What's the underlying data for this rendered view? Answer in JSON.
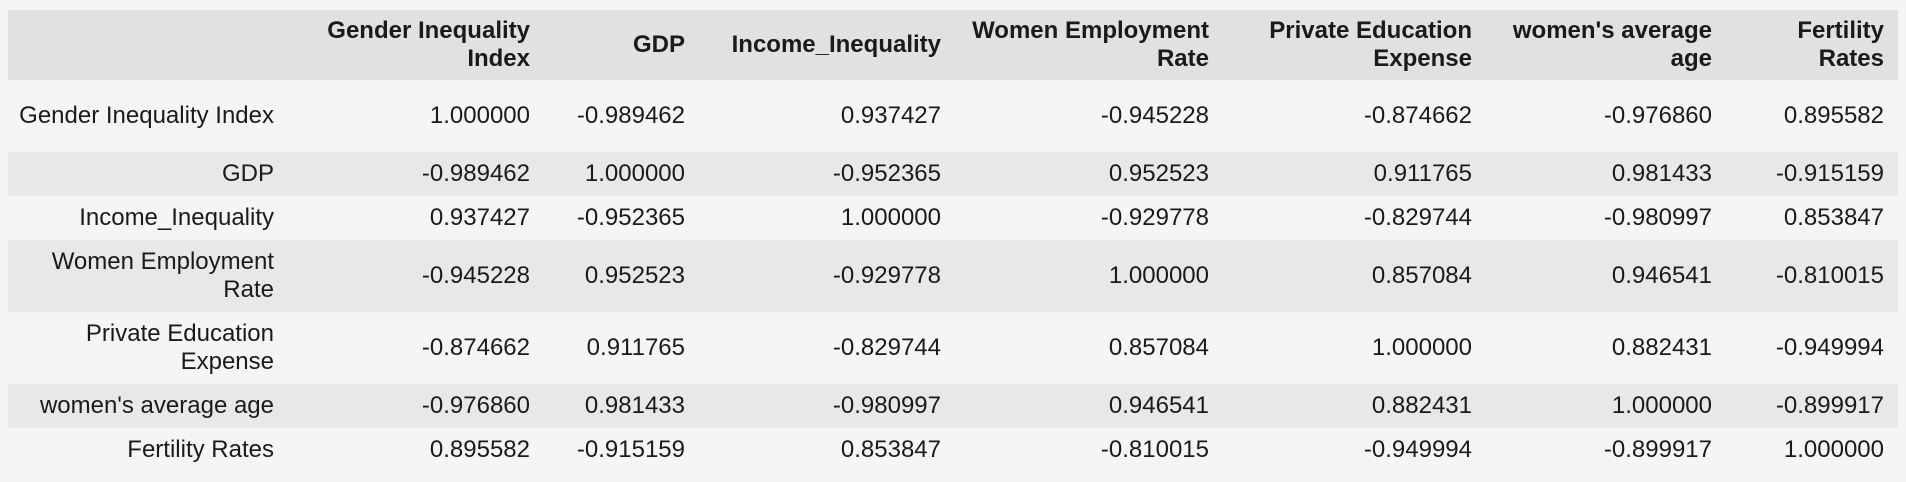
{
  "table": {
    "index_header": "",
    "columns": [
      "Gender Inequality Index",
      "GDP",
      "Income_Inequality",
      "Women Employment Rate",
      "Private Education Expense",
      "women's average age",
      "Fertility Rates"
    ],
    "rows": [
      {
        "label": "Gender Inequality Index",
        "values": [
          "1.000000",
          "-0.989462",
          "0.937427",
          "-0.945228",
          "-0.874662",
          "-0.976860",
          "0.895582"
        ]
      },
      {
        "label": "GDP",
        "values": [
          "-0.989462",
          "1.000000",
          "-0.952365",
          "0.952523",
          "0.911765",
          "0.981433",
          "-0.915159"
        ]
      },
      {
        "label": "Income_Inequality",
        "values": [
          "0.937427",
          "-0.952365",
          "1.000000",
          "-0.929778",
          "-0.829744",
          "-0.980997",
          "0.853847"
        ]
      },
      {
        "label": "Women Employment Rate",
        "values": [
          "-0.945228",
          "0.952523",
          "-0.929778",
          "1.000000",
          "0.857084",
          "0.946541",
          "-0.810015"
        ]
      },
      {
        "label": "Private Education Expense",
        "values": [
          "-0.874662",
          "0.911765",
          "-0.829744",
          "0.857084",
          "1.000000",
          "0.882431",
          "-0.949994"
        ]
      },
      {
        "label": "women's average age",
        "values": [
          "-0.976860",
          "0.981433",
          "-0.980997",
          "0.946541",
          "0.882431",
          "1.000000",
          "-0.899917"
        ]
      },
      {
        "label": "Fertility Rates",
        "values": [
          "0.895582",
          "-0.915159",
          "0.853847",
          "-0.810015",
          "-0.949994",
          "-0.899917",
          "1.000000"
        ]
      }
    ]
  }
}
